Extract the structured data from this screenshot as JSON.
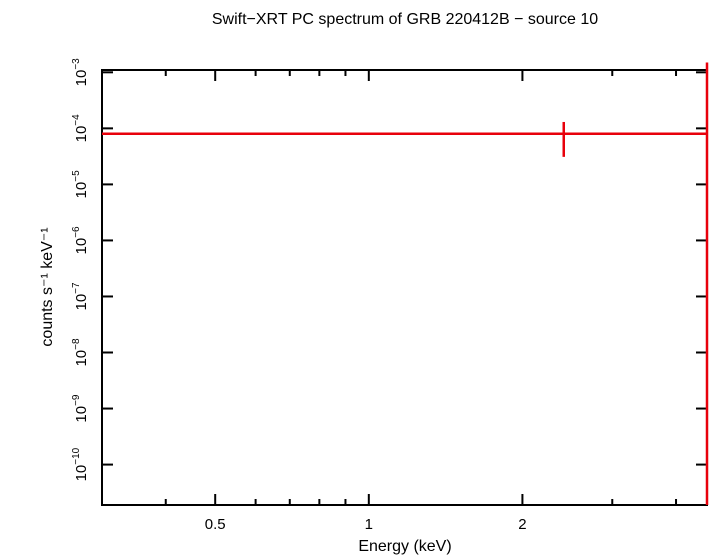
{
  "chart_data": {
    "type": "errorbar",
    "title": "Swift−XRT PC spectrum of GRB 220412B − source 10",
    "x_label": "Energy (keV)",
    "y_label": "counts s⁻¹ keV⁻¹",
    "xscale": "log",
    "yscale": "log",
    "xlim": [
      0.3,
      4.6
    ],
    "ylim": [
      1.9e-11,
      0.0011
    ],
    "xticks": [
      0.5,
      1,
      2
    ],
    "xminor": [
      0.3,
      0.4,
      0.6,
      0.7,
      0.8,
      0.9,
      3,
      4
    ],
    "yticks": [
      {
        "value": 1e-10,
        "label": "10",
        "exponent": "−10"
      },
      {
        "value": 1e-09,
        "label": "10",
        "exponent": "−9"
      },
      {
        "value": 1e-08,
        "label": "10",
        "exponent": "−8"
      },
      {
        "value": 1e-07,
        "label": "10",
        "exponent": "−7"
      },
      {
        "value": 1e-06,
        "label": "10",
        "exponent": "−6"
      },
      {
        "value": 1e-05,
        "label": "10",
        "exponent": "−5"
      },
      {
        "value": 0.0001,
        "label": "10",
        "exponent": "−4"
      },
      {
        "value": 0.001,
        "label": "10",
        "exponent": "−3"
      }
    ],
    "color": "#e8000b",
    "points": [
      {
        "x": 2.41,
        "xlo": 0.3,
        "xhi": 4.6,
        "y": 8e-05,
        "ylo": 3.1e-05,
        "yhi": 0.00013
      },
      {
        "x": 4.6,
        "ylo": 1.9e-11,
        "yhi": 0.0015
      }
    ]
  }
}
